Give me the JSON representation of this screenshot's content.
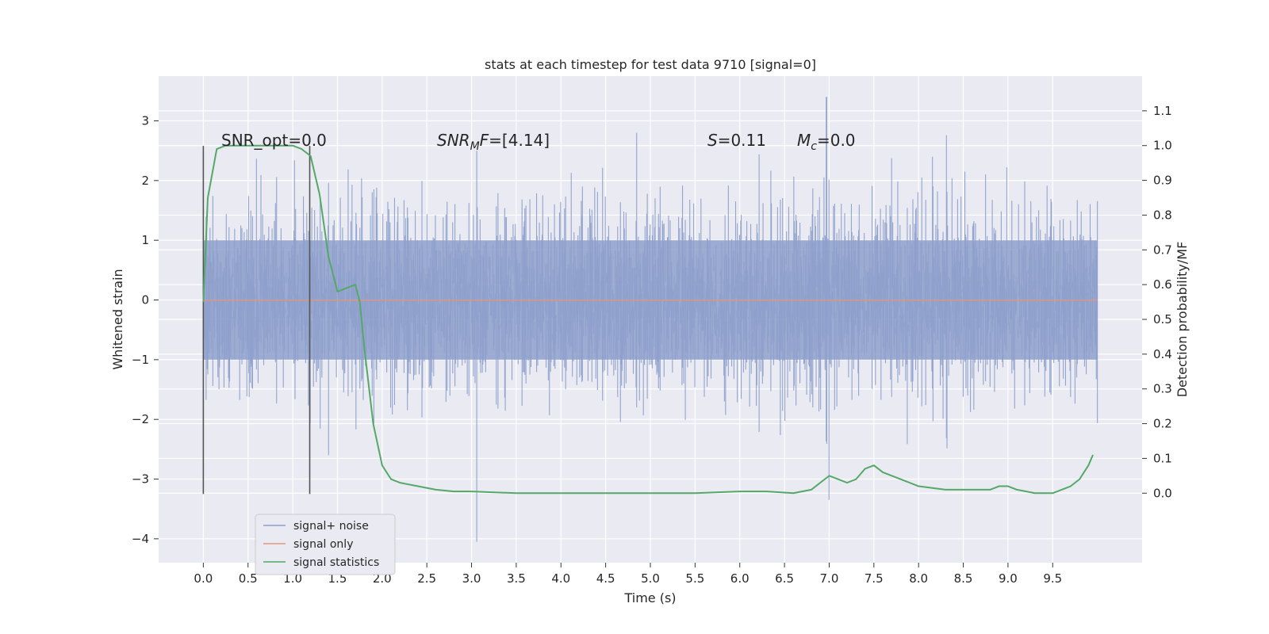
{
  "chart_data": {
    "type": "line",
    "title": "stats at each timestep for test data 9710 [signal=0]",
    "xlabel": "Time (s)",
    "ylabel": "Whitened strain",
    "y2label": "Detection probability/MF",
    "xlim": [
      -0.5,
      10.5
    ],
    "ylim": [
      -4.4,
      3.75
    ],
    "y2lim": [
      -0.2,
      1.2
    ],
    "x_ticks": [
      "0.0",
      "0.5",
      "1.0",
      "1.5",
      "2.0",
      "2.5",
      "3.0",
      "3.5",
      "4.0",
      "4.5",
      "5.0",
      "5.5",
      "6.0",
      "6.5",
      "7.0",
      "7.5",
      "8.0",
      "8.5",
      "9.0",
      "9.5"
    ],
    "y_ticks": [
      "3",
      "2",
      "1",
      "0",
      "−1",
      "−2",
      "−3",
      "−4"
    ],
    "y2_ticks": [
      "1.1",
      "1.0",
      "0.9",
      "0.8",
      "0.7",
      "0.6",
      "0.5",
      "0.4",
      "0.3",
      "0.2",
      "0.1",
      "0.0"
    ],
    "grid": true,
    "legend_position": "lower-left",
    "annotations": {
      "snr_opt": "SNR_opt=0.0",
      "snr_mf_sym": "SNR",
      "snr_mf_sub": "M",
      "snr_mf_f": "F",
      "snr_mf_val": "=[4.14]",
      "s_sym": "S",
      "s_val": "=0.11",
      "mc_sym": "M",
      "mc_sub": "c",
      "mc_val": "=0.0"
    },
    "vlines_x": [
      0.0,
      1.19
    ],
    "series": [
      {
        "name": "signal+ noise",
        "color": "#8ea0cb",
        "style": "noise band",
        "x_range": [
          0.0,
          10.0
        ],
        "core_band": [
          -1.0,
          1.0
        ],
        "typical_extremes": [
          -2.6,
          2.8
        ],
        "notable_peaks": [
          {
            "x": 6.97,
            "y": 3.4
          },
          {
            "x": 3.06,
            "y": -4.05
          },
          {
            "x": 7.0,
            "y": -3.35
          }
        ]
      },
      {
        "name": "signal only",
        "color": "#e1967a",
        "x": [
          0.0,
          10.0
        ],
        "values": [
          0.0,
          0.0
        ]
      },
      {
        "name": "signal statistics",
        "color": "#55a868",
        "axis": "right",
        "x": [
          0.0,
          0.05,
          0.1,
          0.15,
          0.25,
          0.4,
          0.6,
          0.8,
          1.0,
          1.1,
          1.2,
          1.3,
          1.4,
          1.5,
          1.6,
          1.7,
          1.75,
          1.8,
          1.9,
          2.0,
          2.1,
          2.2,
          2.4,
          2.6,
          2.8,
          3.0,
          3.5,
          4.0,
          4.5,
          5.0,
          5.5,
          6.0,
          6.3,
          6.6,
          6.8,
          6.9,
          7.0,
          7.1,
          7.2,
          7.3,
          7.4,
          7.5,
          7.6,
          7.8,
          8.0,
          8.3,
          8.6,
          8.8,
          8.9,
          9.0,
          9.1,
          9.3,
          9.5,
          9.6,
          9.7,
          9.8,
          9.9,
          9.95
        ],
        "values": [
          0.55,
          0.85,
          0.92,
          0.99,
          1.0,
          1.0,
          1.0,
          1.0,
          1.0,
          0.99,
          0.97,
          0.86,
          0.68,
          0.58,
          0.59,
          0.6,
          0.55,
          0.42,
          0.2,
          0.08,
          0.04,
          0.03,
          0.02,
          0.01,
          0.005,
          0.005,
          0.0,
          0.0,
          0.0,
          0.0,
          0.0,
          0.005,
          0.005,
          0.0,
          0.01,
          0.03,
          0.05,
          0.04,
          0.03,
          0.04,
          0.07,
          0.08,
          0.06,
          0.04,
          0.02,
          0.01,
          0.01,
          0.01,
          0.02,
          0.02,
          0.01,
          0.0,
          0.0,
          0.01,
          0.02,
          0.04,
          0.08,
          0.11
        ]
      }
    ]
  }
}
